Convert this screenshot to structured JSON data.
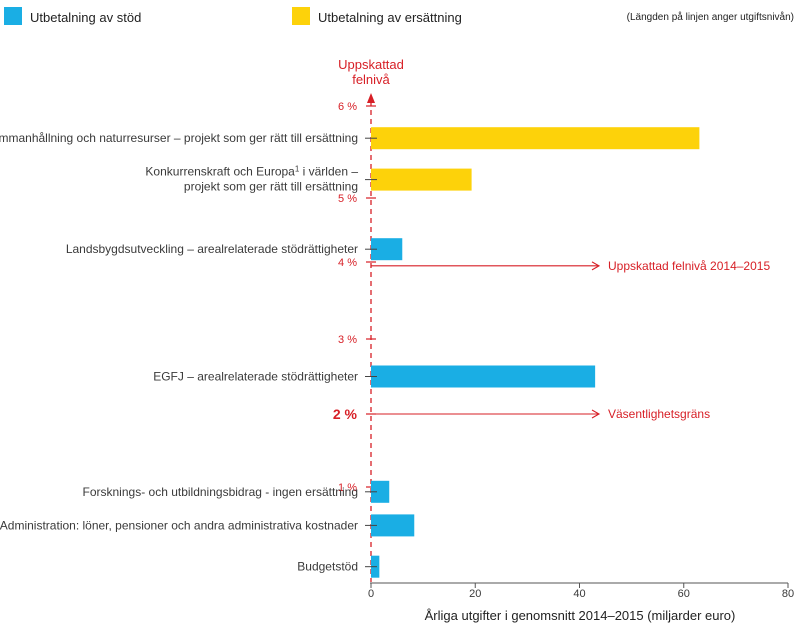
{
  "legend": {
    "items": [
      {
        "label": "Utbetalning av stöd",
        "color": "#1aaee4"
      },
      {
        "label": "Utbetalning av ersättning",
        "color": "#fdd20a"
      }
    ],
    "note": "(Längden på linjen anger utgiftsnivån)"
  },
  "colors": {
    "accent_red": "#d71f26",
    "axis": "#555555"
  },
  "chart_data": {
    "type": "bar",
    "orientation": "horizontal",
    "xlabel": "Årliga utgifter i genomsnitt 2014–2015 (miljarder euro)",
    "xlim": [
      0,
      80
    ],
    "xticks": [
      "0",
      "20",
      "40",
      "60",
      "80"
    ],
    "error_axis": {
      "title_line1": "Uppskattad",
      "title_line2": "felnivå",
      "ticks": [
        {
          "label": "6 %",
          "value": 6,
          "bold": false
        },
        {
          "label": "5 %",
          "value": 5,
          "bold": false
        },
        {
          "label": "4 %",
          "value": 4,
          "bold": false
        },
        {
          "label": "3 %",
          "value": 3,
          "bold": false
        },
        {
          "label": "2 %",
          "value": 2,
          "bold": true
        },
        {
          "label": "1 %",
          "value": 1,
          "bold": false
        }
      ]
    },
    "reference_lines": [
      {
        "label": "Uppskattad felnivå 2014–2015",
        "error_rate": 3.95
      },
      {
        "label": "Väsentlighetsgräns",
        "error_rate": 2
      }
    ],
    "bars": [
      {
        "label_lines": [
          "Sammanhållning och naturresurser – projekt som ger rätt till ersättning"
        ],
        "label_sup": "",
        "value": 63,
        "error_rate": 5.65,
        "series": "ersattning"
      },
      {
        "label_lines": [
          "Konkurrenskraft och Europa",
          " i världen –",
          "projekt som ger rätt till ersättning"
        ],
        "label_sup": "1",
        "value": 19.3,
        "error_rate": 5.2,
        "series": "ersattning"
      },
      {
        "label_lines": [
          "Landsbygdsutveckling – arealrelaterade stödrättigheter"
        ],
        "label_sup": "",
        "value": 6,
        "error_rate": 4.2,
        "series": "stod"
      },
      {
        "label_lines": [
          "EGFJ – arealrelaterade stödrättigheter"
        ],
        "label_sup": "",
        "value": 43,
        "error_rate": 2.5,
        "series": "stod"
      },
      {
        "label_lines": [
          "Forsknings- och utbildningsbidrag - ingen ersättning"
        ],
        "label_sup": "",
        "value": 3.5,
        "error_rate": 0.95,
        "series": "stod"
      },
      {
        "label_lines": [
          "Administration: löner, pensioner och andra administrativa kostnader"
        ],
        "label_sup": "",
        "value": 8.3,
        "error_rate": 0.6,
        "series": "stod"
      },
      {
        "label_lines": [
          "Budgetstöd"
        ],
        "label_sup": "",
        "value": 1.6,
        "error_rate": 0.17,
        "series": "stod"
      }
    ]
  }
}
